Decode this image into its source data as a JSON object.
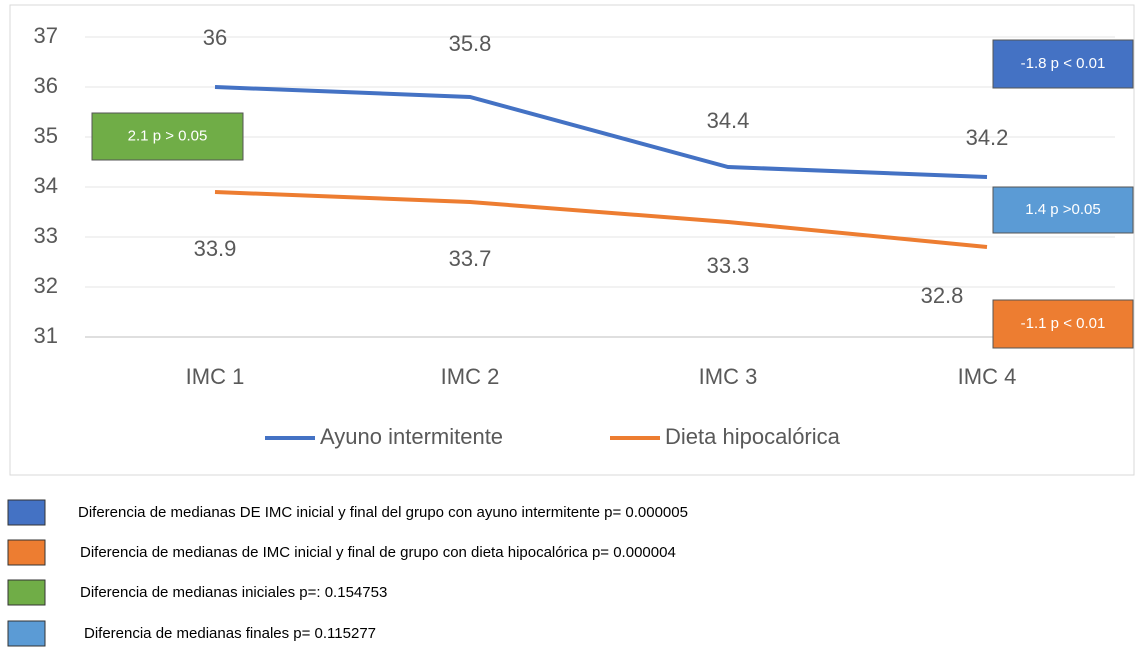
{
  "chart_data": {
    "type": "line",
    "categories": [
      "IMC 1",
      "IMC 2",
      "IMC 3",
      "IMC 4"
    ],
    "series": [
      {
        "name": "Ayuno intermitente",
        "color": "#4472c4",
        "values": [
          36,
          35.8,
          34.4,
          34.2
        ]
      },
      {
        "name": "Dieta hipocalórica",
        "color": "#ed7d31",
        "values": [
          33.9,
          33.7,
          33.3,
          32.8
        ]
      }
    ],
    "ylim": [
      31,
      37
    ],
    "yticks": [
      31,
      32,
      33,
      34,
      35,
      36,
      37
    ],
    "grid": true,
    "legend": "bottom",
    "annotations": [
      {
        "text": "-1.8 p < 0.01",
        "color": "#4472c4"
      },
      {
        "text": "2.1 p > 0.05",
        "color": "#70ad47"
      },
      {
        "text": "1.4 p >0.05",
        "color": "#5b9bd5"
      },
      {
        "text": "-1.1 p < 0.01",
        "color": "#ed7d31"
      }
    ],
    "notes": [
      {
        "text": "Diferencia de medianas DE IMC inicial y final del grupo con ayuno intermitente p= 0.000005",
        "color": "#4472c4"
      },
      {
        "text": "Diferencia de medianas de IMC inicial y final de grupo con dieta hipocalórica p= 0.000004",
        "color": "#ed7d31"
      },
      {
        "text": "Diferencia de medianas iniciales p=: 0.154753",
        "color": "#70ad47"
      },
      {
        "text": "Diferencia de medianas finales p= 0.115277",
        "color": "#5b9bd5"
      }
    ]
  }
}
